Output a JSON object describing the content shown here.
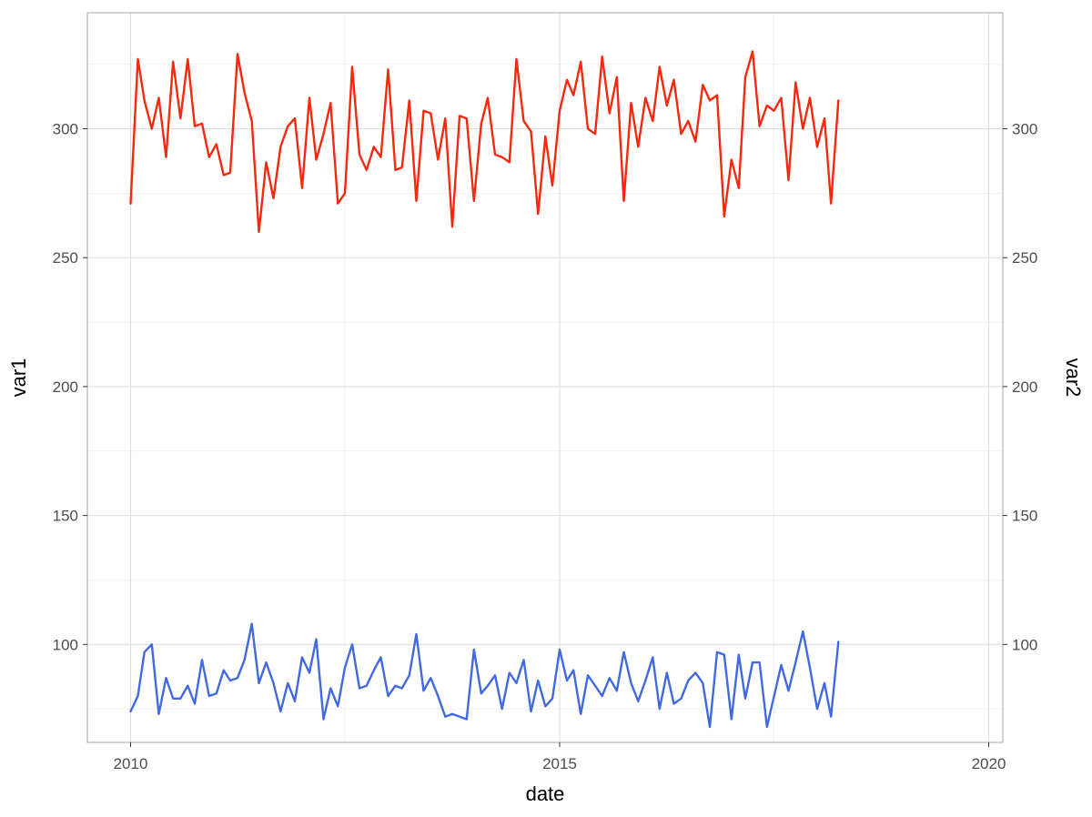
{
  "chart_data": {
    "type": "line",
    "title": "",
    "xlabel": "date",
    "ylabel": "var1",
    "y2label": "var2",
    "xlim": [
      "2009-07-01",
      "2020-03-01"
    ],
    "ylim": [
      62,
      345
    ],
    "x_ticks": [
      {
        "value": "2010-01-01",
        "label": "2010"
      },
      {
        "value": "2015-01-01",
        "label": "2015"
      },
      {
        "value": "2020-01-01",
        "label": "2020"
      }
    ],
    "x_minor_ticks": [
      "2012-07-01",
      "2017-07-01"
    ],
    "y_ticks": [
      100,
      150,
      200,
      250,
      300
    ],
    "y_minor_ticks": [
      75,
      125,
      175,
      225,
      275,
      325
    ],
    "y2_ticks": [
      100,
      150,
      200,
      250,
      300
    ],
    "grid": true,
    "legend": "none",
    "series": [
      {
        "color": "#f8280f",
        "axis": "left",
        "points": [
          [
            "2010-01-01",
            271
          ],
          [
            "2010-02-01",
            327
          ],
          [
            "2010-03-01",
            311
          ],
          [
            "2010-04-01",
            300
          ],
          [
            "2010-05-01",
            312
          ],
          [
            "2010-06-01",
            289
          ],
          [
            "2010-07-01",
            326
          ],
          [
            "2010-08-01",
            304
          ],
          [
            "2010-09-01",
            327
          ],
          [
            "2010-10-01",
            301
          ],
          [
            "2010-11-01",
            302
          ],
          [
            "2010-12-01",
            289
          ],
          [
            "2011-01-01",
            294
          ],
          [
            "2011-02-01",
            282
          ],
          [
            "2011-03-01",
            283
          ],
          [
            "2011-04-01",
            329
          ],
          [
            "2011-05-01",
            314
          ],
          [
            "2011-06-01",
            303
          ],
          [
            "2011-07-01",
            260
          ],
          [
            "2011-08-01",
            287
          ],
          [
            "2011-09-01",
            273
          ],
          [
            "2011-10-01",
            293
          ],
          [
            "2011-11-01",
            301
          ],
          [
            "2011-12-01",
            304
          ],
          [
            "2012-01-01",
            277
          ],
          [
            "2012-02-01",
            312
          ],
          [
            "2012-03-01",
            288
          ],
          [
            "2012-04-01",
            298
          ],
          [
            "2012-05-01",
            310
          ],
          [
            "2012-06-01",
            271
          ],
          [
            "2012-07-01",
            275
          ],
          [
            "2012-08-01",
            324
          ],
          [
            "2012-09-01",
            290
          ],
          [
            "2012-10-01",
            284
          ],
          [
            "2012-11-01",
            293
          ],
          [
            "2012-12-01",
            289
          ],
          [
            "2013-01-01",
            323
          ],
          [
            "2013-02-01",
            284
          ],
          [
            "2013-03-01",
            285
          ],
          [
            "2013-04-01",
            311
          ],
          [
            "2013-05-01",
            272
          ],
          [
            "2013-06-01",
            307
          ],
          [
            "2013-07-01",
            306
          ],
          [
            "2013-08-01",
            288
          ],
          [
            "2013-09-01",
            304
          ],
          [
            "2013-10-01",
            262
          ],
          [
            "2013-11-01",
            305
          ],
          [
            "2013-12-01",
            304
          ],
          [
            "2014-01-01",
            272
          ],
          [
            "2014-02-01",
            302
          ],
          [
            "2014-03-01",
            312
          ],
          [
            "2014-04-01",
            290
          ],
          [
            "2014-05-01",
            289
          ],
          [
            "2014-06-01",
            287
          ],
          [
            "2014-07-01",
            327
          ],
          [
            "2014-08-01",
            303
          ],
          [
            "2014-09-01",
            299
          ],
          [
            "2014-10-01",
            267
          ],
          [
            "2014-11-01",
            297
          ],
          [
            "2014-12-01",
            278
          ],
          [
            "2015-01-01",
            307
          ],
          [
            "2015-02-01",
            319
          ],
          [
            "2015-03-01",
            313
          ],
          [
            "2015-04-01",
            326
          ],
          [
            "2015-05-01",
            300
          ],
          [
            "2015-06-01",
            298
          ],
          [
            "2015-07-01",
            328
          ],
          [
            "2015-08-01",
            306
          ],
          [
            "2015-09-01",
            320
          ],
          [
            "2015-10-01",
            272
          ],
          [
            "2015-11-01",
            310
          ],
          [
            "2015-12-01",
            293
          ],
          [
            "2016-01-01",
            312
          ],
          [
            "2016-02-01",
            303
          ],
          [
            "2016-03-01",
            324
          ],
          [
            "2016-04-01",
            309
          ],
          [
            "2016-05-01",
            319
          ],
          [
            "2016-06-01",
            298
          ],
          [
            "2016-07-01",
            303
          ],
          [
            "2016-08-01",
            295
          ],
          [
            "2016-09-01",
            317
          ],
          [
            "2016-10-01",
            311
          ],
          [
            "2016-11-01",
            313
          ],
          [
            "2016-12-01",
            266
          ],
          [
            "2017-01-01",
            288
          ],
          [
            "2017-02-01",
            277
          ],
          [
            "2017-03-01",
            320
          ],
          [
            "2017-04-01",
            330
          ],
          [
            "2017-05-01",
            301
          ],
          [
            "2017-06-01",
            309
          ],
          [
            "2017-07-01",
            307
          ],
          [
            "2017-08-01",
            312
          ],
          [
            "2017-09-01",
            280
          ],
          [
            "2017-10-01",
            318
          ],
          [
            "2017-11-01",
            300
          ],
          [
            "2017-12-01",
            312
          ],
          [
            "2018-01-01",
            293
          ],
          [
            "2018-02-01",
            304
          ],
          [
            "2018-03-01",
            271
          ],
          [
            "2018-04-01",
            311
          ]
        ]
      },
      {
        "color": "#4169e1",
        "axis": "left",
        "points": [
          [
            "2010-01-01",
            74
          ],
          [
            "2010-02-01",
            80
          ],
          [
            "2010-03-01",
            97
          ],
          [
            "2010-04-01",
            100
          ],
          [
            "2010-05-01",
            73
          ],
          [
            "2010-06-01",
            87
          ],
          [
            "2010-07-01",
            79
          ],
          [
            "2010-08-01",
            79
          ],
          [
            "2010-09-01",
            84
          ],
          [
            "2010-10-01",
            77
          ],
          [
            "2010-11-01",
            94
          ],
          [
            "2010-12-01",
            80
          ],
          [
            "2011-01-01",
            81
          ],
          [
            "2011-02-01",
            90
          ],
          [
            "2011-03-01",
            86
          ],
          [
            "2011-04-01",
            87
          ],
          [
            "2011-05-01",
            94
          ],
          [
            "2011-06-01",
            108
          ],
          [
            "2011-07-01",
            85
          ],
          [
            "2011-08-01",
            93
          ],
          [
            "2011-09-01",
            85
          ],
          [
            "2011-10-01",
            74
          ],
          [
            "2011-11-01",
            85
          ],
          [
            "2011-12-01",
            78
          ],
          [
            "2012-01-01",
            95
          ],
          [
            "2012-02-01",
            89
          ],
          [
            "2012-03-01",
            102
          ],
          [
            "2012-04-01",
            71
          ],
          [
            "2012-05-01",
            83
          ],
          [
            "2012-06-01",
            76
          ],
          [
            "2012-07-01",
            91
          ],
          [
            "2012-08-01",
            100
          ],
          [
            "2012-09-01",
            83
          ],
          [
            "2012-10-01",
            84
          ],
          [
            "2012-11-01",
            90
          ],
          [
            "2012-12-01",
            95
          ],
          [
            "2013-01-01",
            80
          ],
          [
            "2013-02-01",
            84
          ],
          [
            "2013-03-01",
            83
          ],
          [
            "2013-04-01",
            88
          ],
          [
            "2013-05-01",
            104
          ],
          [
            "2013-06-01",
            82
          ],
          [
            "2013-07-01",
            87
          ],
          [
            "2013-08-01",
            80
          ],
          [
            "2013-09-01",
            72
          ],
          [
            "2013-10-01",
            73
          ],
          [
            "2013-12-01",
            71
          ],
          [
            "2014-01-01",
            98
          ],
          [
            "2014-02-01",
            81
          ],
          [
            "2014-03-01",
            84
          ],
          [
            "2014-04-01",
            88
          ],
          [
            "2014-05-01",
            75
          ],
          [
            "2014-06-01",
            89
          ],
          [
            "2014-07-01",
            85
          ],
          [
            "2014-08-01",
            94
          ],
          [
            "2014-09-01",
            74
          ],
          [
            "2014-10-01",
            86
          ],
          [
            "2014-11-01",
            76
          ],
          [
            "2014-12-01",
            79
          ],
          [
            "2015-01-01",
            98
          ],
          [
            "2015-02-01",
            86
          ],
          [
            "2015-03-01",
            90
          ],
          [
            "2015-04-01",
            73
          ],
          [
            "2015-05-01",
            88
          ],
          [
            "2015-06-01",
            84
          ],
          [
            "2015-07-01",
            80
          ],
          [
            "2015-08-01",
            87
          ],
          [
            "2015-09-01",
            82
          ],
          [
            "2015-10-01",
            97
          ],
          [
            "2015-11-01",
            85
          ],
          [
            "2015-12-01",
            78
          ],
          [
            "2016-01-01",
            86
          ],
          [
            "2016-02-01",
            95
          ],
          [
            "2016-03-01",
            75
          ],
          [
            "2016-04-01",
            89
          ],
          [
            "2016-05-01",
            77
          ],
          [
            "2016-06-01",
            79
          ],
          [
            "2016-07-01",
            86
          ],
          [
            "2016-08-01",
            89
          ],
          [
            "2016-09-01",
            85
          ],
          [
            "2016-10-01",
            68
          ],
          [
            "2016-11-01",
            97
          ],
          [
            "2016-12-01",
            96
          ],
          [
            "2017-01-01",
            71
          ],
          [
            "2017-02-01",
            96
          ],
          [
            "2017-03-01",
            79
          ],
          [
            "2017-04-01",
            93
          ],
          [
            "2017-05-01",
            93
          ],
          [
            "2017-06-01",
            68
          ],
          [
            "2017-08-01",
            92
          ],
          [
            "2017-09-01",
            82
          ],
          [
            "2017-10-01",
            93
          ],
          [
            "2017-11-01",
            105
          ],
          [
            "2017-12-01",
            91
          ],
          [
            "2018-01-01",
            75
          ],
          [
            "2018-02-01",
            85
          ],
          [
            "2018-03-01",
            72
          ],
          [
            "2018-04-01",
            101
          ]
        ]
      }
    ]
  }
}
